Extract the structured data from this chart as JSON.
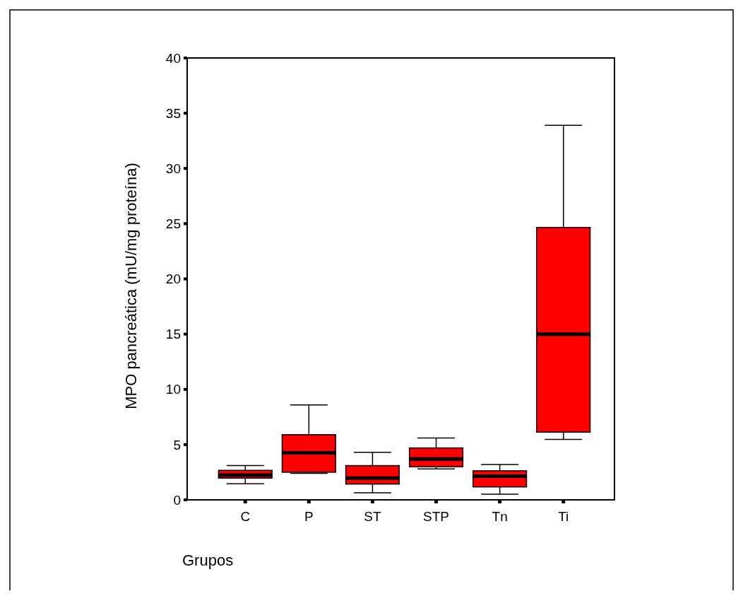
{
  "chart_data": {
    "type": "box",
    "xlabel": "Grupos",
    "ylabel": "MPO pancreática (mU/mg proteína)",
    "categories": [
      "C",
      "P",
      "ST",
      "STP",
      "Tn",
      "Ti"
    ],
    "color": "#ff0000",
    "boxes": [
      {
        "low": 1.45,
        "q1": 1.97,
        "median": 2.24,
        "q3": 2.67,
        "high": 3.1
      },
      {
        "low": 2.4,
        "q1": 2.5,
        "median": 4.25,
        "q3": 5.9,
        "high": 8.6
      },
      {
        "low": 0.64,
        "q1": 1.43,
        "median": 1.97,
        "q3": 3.1,
        "high": 4.3
      },
      {
        "low": 2.8,
        "q1": 3.0,
        "median": 3.7,
        "q3": 4.7,
        "high": 5.6
      },
      {
        "low": 0.51,
        "q1": 1.17,
        "median": 2.15,
        "q3": 2.63,
        "high": 3.2
      },
      {
        "low": 5.48,
        "q1": 6.13,
        "median": 15.0,
        "q3": 24.66,
        "high": 33.9
      }
    ],
    "ylim": [
      0,
      40
    ],
    "yticks": [
      0,
      5,
      10,
      15,
      20,
      25,
      30,
      35,
      40
    ],
    "grid": false
  }
}
